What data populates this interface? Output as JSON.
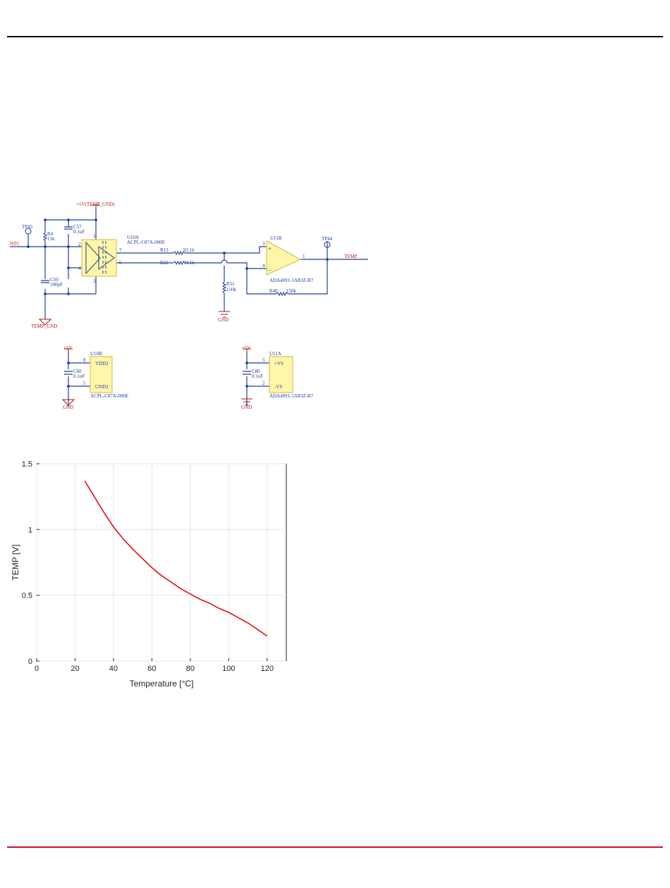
{
  "colors": {
    "wire": "#1f3f9f",
    "power": "#b11a1a",
    "ic_fill": "#fff6a8",
    "ic_border": "#d0b840",
    "curve": "#e01010",
    "top_rule": "#000000",
    "bottom_rule": "#c8102e"
  },
  "schematic": {
    "nets": {
      "supply_iso": "+5V(TEMP_GND)",
      "ntc": "NTC",
      "temp_gnd": "TEMP_GND",
      "gnd": "GND",
      "temp": "TEMP",
      "supply": "+5V"
    },
    "testpoints": {
      "tp45": "TP45",
      "tp44": "TP44"
    },
    "r4": {
      "ref": "R4",
      "value": "15k"
    },
    "c57": {
      "ref": "C57",
      "value": "0.1uF"
    },
    "c50": {
      "ref": "C50",
      "value": "100pF"
    },
    "u10a": {
      "ref": "U10A",
      "part": "ACPL-C87A-000E",
      "pins": {
        "vin": "2",
        "shdn": "4",
        "top": "1",
        "bottom": "3",
        "out_p": "7",
        "out_n": "6"
      }
    },
    "r13": {
      "ref": "R13",
      "value": "93.1k"
    },
    "r22": {
      "ref": "R22",
      "value": "93.1k"
    },
    "r31": {
      "ref": "R31",
      "value": "150k"
    },
    "r40": {
      "ref": "R40",
      "value": "150k"
    },
    "u11b": {
      "ref": "U11B",
      "part": "ADA4091-1ARJZ-R7",
      "pins": {
        "inp": "3",
        "inn": "4",
        "out": "1"
      },
      "plus": "+",
      "minus": "−"
    },
    "u10b": {
      "ref": "U10B",
      "part": "ACPL-C87A-000E",
      "pin_vdd": "8",
      "pin_gnd": "5",
      "label_vdd": "VDD2",
      "label_gnd": "GND2"
    },
    "c60": {
      "ref": "C60",
      "value": "0.1uF"
    },
    "u11a": {
      "ref": "U11A",
      "part": "ADA4091-1ARJZ-R7",
      "pin_vp": "5",
      "pin_vn": "2",
      "label_vp": "+VS",
      "label_vn": "-VS"
    },
    "c80": {
      "ref": "C80",
      "value": "0.1uF"
    }
  },
  "chart_data": {
    "type": "line",
    "xlabel": "Temperature [°C]",
    "ylabel": "TEMP [V]",
    "xlim": [
      0,
      130
    ],
    "ylim": [
      0,
      1.5
    ],
    "xticks": [
      "0",
      "20",
      "40",
      "60",
      "80",
      "100",
      "120"
    ],
    "yticks": [
      "0",
      "0.5",
      "1",
      "1.5"
    ],
    "grid": true,
    "series": [
      {
        "x": [
          25,
          30,
          35,
          40,
          45,
          50,
          55,
          60,
          65,
          70,
          75,
          80,
          85,
          90,
          95,
          100,
          105,
          110,
          115,
          120
        ],
        "y": [
          1.37,
          1.25,
          1.13,
          1.02,
          0.93,
          0.85,
          0.78,
          0.71,
          0.65,
          0.6,
          0.55,
          0.51,
          0.47,
          0.44,
          0.4,
          0.37,
          0.33,
          0.29,
          0.24,
          0.19
        ]
      }
    ]
  }
}
